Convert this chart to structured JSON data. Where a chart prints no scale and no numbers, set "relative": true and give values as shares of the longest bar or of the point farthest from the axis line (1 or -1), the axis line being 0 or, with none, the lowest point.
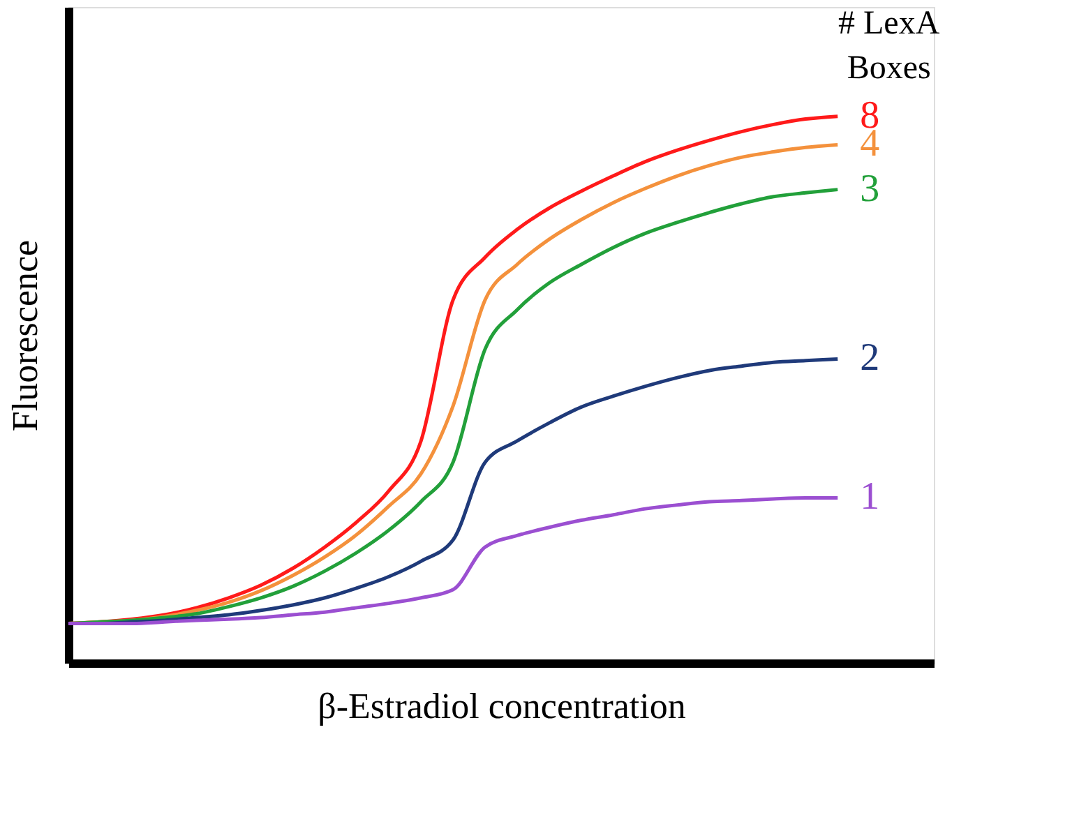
{
  "chart_data": {
    "type": "line",
    "relative": true,
    "xlabel": "β-Estradiol concentration",
    "ylabel": "Fluorescence",
    "legend_title": "# LexA Boxes",
    "grid": false,
    "tick_labels": false,
    "categories": [
      null,
      null,
      null,
      null,
      null,
      null,
      null,
      null,
      null,
      null,
      null,
      null,
      null,
      null,
      null,
      null,
      null,
      null,
      null,
      null,
      null,
      null,
      null,
      null,
      null
    ],
    "series": [
      {
        "name": "8",
        "color": "#ff1a1a",
        "values": [
          0.072,
          0.075,
          0.08,
          0.088,
          0.101,
          0.119,
          0.142,
          0.173,
          0.212,
          0.258,
          0.315,
          0.406,
          0.664,
          0.742,
          0.793,
          0.832,
          0.863,
          0.891,
          0.917,
          0.938,
          0.956,
          0.972,
          0.985,
          0.995,
          1
        ]
      },
      {
        "name": "4",
        "color": "#f4913c",
        "values": [
          0.072,
          0.075,
          0.078,
          0.085,
          0.096,
          0.111,
          0.132,
          0.16,
          0.194,
          0.235,
          0.287,
          0.346,
          0.47,
          0.664,
          0.729,
          0.775,
          0.811,
          0.842,
          0.868,
          0.891,
          0.91,
          0.925,
          0.935,
          0.943,
          0.948
        ]
      },
      {
        "name": "3",
        "color": "#22a03a",
        "values": [
          0.072,
          0.075,
          0.078,
          0.083,
          0.09,
          0.103,
          0.119,
          0.14,
          0.168,
          0.202,
          0.243,
          0.295,
          0.367,
          0.574,
          0.646,
          0.695,
          0.729,
          0.76,
          0.786,
          0.806,
          0.824,
          0.84,
          0.853,
          0.86,
          0.866
        ]
      },
      {
        "name": "2",
        "color": "#1f3a7a",
        "values": [
          0.072,
          0.072,
          0.075,
          0.078,
          0.083,
          0.088,
          0.096,
          0.106,
          0.119,
          0.137,
          0.158,
          0.186,
          0.225,
          0.367,
          0.406,
          0.439,
          0.468,
          0.488,
          0.506,
          0.522,
          0.535,
          0.543,
          0.55,
          0.553,
          0.556
        ]
      },
      {
        "name": "1",
        "color": "#9b4fd1",
        "values": [
          0.072,
          0.072,
          0.072,
          0.075,
          0.078,
          0.08,
          0.083,
          0.088,
          0.093,
          0.101,
          0.109,
          0.119,
          0.134,
          0.212,
          0.233,
          0.248,
          0.261,
          0.271,
          0.282,
          0.289,
          0.295,
          0.297,
          0.3,
          0.302,
          0.302
        ]
      }
    ]
  }
}
